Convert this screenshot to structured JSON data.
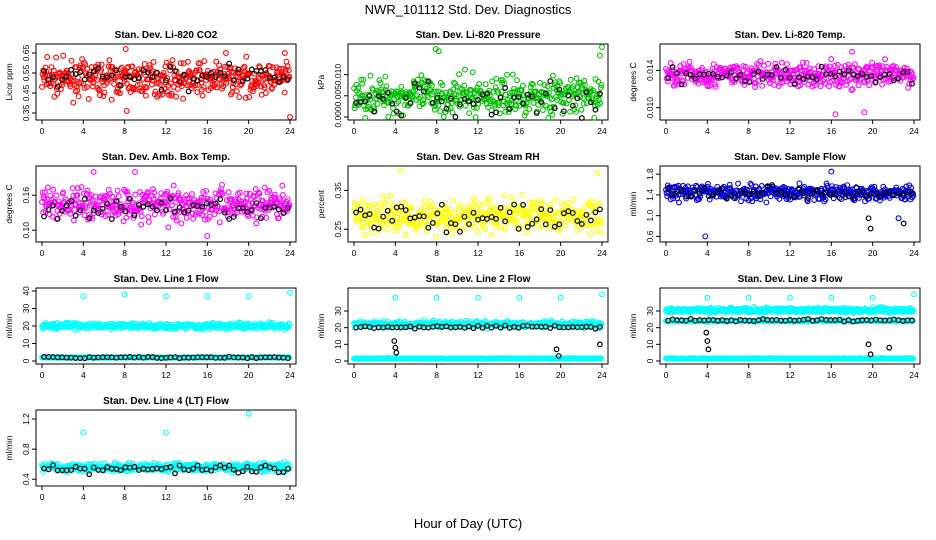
{
  "title": "NWR_101112  Std. Dev. Diagnostics",
  "xlabel": "Hour of Day (UTC)",
  "chart_data": [
    {
      "type": "scatter",
      "title": "Stan. Dev. Li-820 CO2",
      "ylabel": "Licor ppm",
      "xlim": [
        0,
        24
      ],
      "ylim": [
        0.33,
        0.68
      ],
      "xticks": [
        0,
        4,
        8,
        12,
        16,
        20,
        24
      ],
      "yticks": [
        0.35,
        0.45,
        0.55,
        0.65
      ],
      "ytick_labels": [
        "0.35",
        "0.45",
        "0.55",
        "0.65"
      ],
      "color": "#ff0000",
      "center": 0.52,
      "spread": 0.055,
      "black_center": 0.53,
      "black_spread": 0.04,
      "outliers": [
        [
          0.5,
          0.63
        ],
        [
          8.2,
          0.36
        ],
        [
          8.1,
          0.67
        ],
        [
          17.8,
          0.65
        ],
        [
          23.5,
          0.65
        ],
        [
          24,
          0.33
        ]
      ],
      "dips": []
    },
    {
      "type": "scatter",
      "title": "Stan. Dev. Li-820 Pressure",
      "ylabel": "kPa",
      "xlim": [
        0,
        24
      ],
      "ylim": [
        0,
        0.0165
      ],
      "xticks": [
        0,
        4,
        8,
        12,
        16,
        20,
        24
      ],
      "yticks": [
        0,
        0.005,
        0.01
      ],
      "ytick_labels": [
        "0.000",
        "0.005",
        "0.010"
      ],
      "color": "#00c000",
      "center": 0.005,
      "spread": 0.003,
      "black_center": 0.004,
      "black_spread": 0.003,
      "outliers": [
        [
          7.9,
          0.016
        ],
        [
          8.2,
          0.0155
        ],
        [
          24,
          0.0165
        ],
        [
          23.8,
          0.0145
        ]
      ],
      "dips": []
    },
    {
      "type": "scatter",
      "title": "Stan. Dev. Li-820 Temp.",
      "ylabel": "degrees C",
      "xlim": [
        0,
        24
      ],
      "ylim": [
        0.009,
        0.0165
      ],
      "xticks": [
        0,
        4,
        8,
        12,
        16,
        20,
        24
      ],
      "yticks": [
        0.01,
        0.014
      ],
      "ytick_labels": [
        "0.010",
        "0.014"
      ],
      "color": "#ff00ff",
      "center": 0.0135,
      "spread": 0.0009,
      "black_center": 0.0135,
      "black_spread": 0.0006,
      "outliers": [
        [
          16.4,
          0.0093
        ],
        [
          18,
          0.016
        ],
        [
          19.2,
          0.0095
        ]
      ],
      "dips": []
    },
    {
      "type": "scatter",
      "title": "Stan. Dev. Amb. Box Temp.",
      "ylabel": "degrees C",
      "xlim": [
        0,
        24
      ],
      "ylim": [
        0.085,
        0.205
      ],
      "xticks": [
        0,
        4,
        8,
        12,
        16,
        20,
        24
      ],
      "yticks": [
        0.1,
        0.16
      ],
      "ytick_labels": [
        "0.10",
        "0.16"
      ],
      "color": "#ff00ff",
      "center": 0.145,
      "spread": 0.02,
      "black_center": 0.135,
      "black_spread": 0.012,
      "outliers": [
        [
          5,
          0.2
        ],
        [
          9,
          0.2
        ],
        [
          16,
          0.09
        ]
      ],
      "dips": []
    },
    {
      "type": "scatter",
      "title": "Stan. Dev. Gas Stream RH",
      "ylabel": "percent",
      "xlim": [
        0,
        24
      ],
      "ylim": [
        0.225,
        0.405
      ],
      "xticks": [
        0,
        4,
        8,
        12,
        16,
        20,
        24
      ],
      "yticks": [
        0.25,
        0.35
      ],
      "ytick_labels": [
        "0.25",
        "0.35"
      ],
      "color": "#ffff00",
      "center": 0.285,
      "spread": 0.03,
      "black_center": 0.28,
      "black_spread": 0.025,
      "outliers": [
        [
          4.5,
          0.4
        ],
        [
          23.6,
          0.395
        ]
      ],
      "dips": []
    },
    {
      "type": "scatter",
      "title": "Stan. Dev. Sample Flow",
      "ylabel": "ml/min",
      "xlim": [
        0,
        24
      ],
      "ylim": [
        0.55,
        1.9
      ],
      "xticks": [
        0,
        4,
        8,
        12,
        16,
        20,
        24
      ],
      "yticks": [
        0.6,
        1.0,
        1.4,
        1.8
      ],
      "ytick_labels": [
        "0.6",
        "1.0",
        "1.4",
        "1.8"
      ],
      "color": "#0000e0",
      "center": 1.45,
      "spread": 0.1,
      "black_center": 1.45,
      "black_spread": 0.08,
      "outliers": [
        [
          3.8,
          0.6
        ],
        [
          16,
          1.85
        ],
        [
          22.5,
          0.95
        ]
      ],
      "dips": [
        [
          19.8,
          0.75
        ],
        [
          19.6,
          0.95
        ],
        [
          23,
          0.85
        ]
      ]
    },
    {
      "type": "scatter",
      "title": "Stan. Dev. Line 1 Flow",
      "ylabel": "ml/min",
      "xlim": [
        0,
        24
      ],
      "ylim": [
        0,
        40
      ],
      "xticks": [
        0,
        4,
        8,
        12,
        16,
        20,
        24
      ],
      "yticks": [
        0,
        10,
        20,
        30,
        40
      ],
      "ytick_labels": [
        "0",
        "10",
        "20",
        "30",
        "40"
      ],
      "color": "#00ffff",
      "center": 20,
      "spread": 1.2,
      "black_center": 2,
      "black_spread": 0.3,
      "band2": 2,
      "outliers": [
        [
          4,
          37
        ],
        [
          8,
          38
        ],
        [
          12,
          37
        ],
        [
          16,
          37
        ],
        [
          20,
          37
        ],
        [
          24,
          39
        ]
      ],
      "dips": []
    },
    {
      "type": "scatter",
      "title": "Stan. Dev. Line 2 Flow",
      "ylabel": "ml/min",
      "xlim": [
        0,
        24
      ],
      "ylim": [
        0,
        42
      ],
      "xticks": [
        0,
        4,
        8,
        12,
        16,
        20,
        24
      ],
      "yticks": [
        0,
        10,
        20,
        30
      ],
      "ytick_labels": [
        "0",
        "10",
        "20",
        "30"
      ],
      "color": "#00ffff",
      "center": 22,
      "spread": 1.2,
      "black_center": 20.5,
      "black_spread": 0.6,
      "band2": 1.5,
      "outliers": [
        [
          4,
          38
        ],
        [
          8,
          38
        ],
        [
          12,
          38
        ],
        [
          16,
          38
        ],
        [
          20,
          38
        ],
        [
          24,
          40
        ]
      ],
      "dips": [
        [
          3.9,
          12
        ],
        [
          4,
          8
        ],
        [
          4.1,
          5
        ],
        [
          19.6,
          7
        ],
        [
          19.8,
          3
        ],
        [
          23.8,
          10
        ]
      ]
    },
    {
      "type": "scatter",
      "title": "Stan. Dev. Line 3 Flow",
      "ylabel": "ml/min",
      "xlim": [
        0,
        24
      ],
      "ylim": [
        0,
        42
      ],
      "xticks": [
        0,
        4,
        8,
        12,
        16,
        20,
        24
      ],
      "yticks": [
        0,
        10,
        20,
        30
      ],
      "ytick_labels": [
        "0",
        "10",
        "20",
        "30"
      ],
      "color": "#00ffff",
      "center": 30.5,
      "spread": 1,
      "black_center": 24.5,
      "black_spread": 0.5,
      "band2": 1.5,
      "band3": 24,
      "outliers": [
        [
          4,
          38
        ],
        [
          8,
          38
        ],
        [
          12,
          38
        ],
        [
          16,
          38
        ],
        [
          20,
          38
        ],
        [
          24,
          40
        ]
      ],
      "dips": [
        [
          3.9,
          17
        ],
        [
          4,
          12
        ],
        [
          4.1,
          7
        ],
        [
          19.6,
          10
        ],
        [
          19.8,
          4
        ],
        [
          21.6,
          8
        ]
      ]
    },
    {
      "type": "scatter",
      "title": "Stan. Dev. Line 4 (LT) Flow",
      "ylabel": "ml/min",
      "xlim": [
        0,
        24
      ],
      "ylim": [
        0.35,
        1.28
      ],
      "xticks": [
        0,
        4,
        8,
        12,
        16,
        20,
        24
      ],
      "yticks": [
        0.4,
        0.8,
        1.2
      ],
      "ytick_labels": [
        "0.4",
        "0.8",
        "1.2"
      ],
      "color": "#00ffff",
      "center": 0.56,
      "spread": 0.04,
      "black_center": 0.53,
      "black_spread": 0.04,
      "outliers": [
        [
          4,
          1.02
        ],
        [
          12,
          1.02
        ],
        [
          20,
          1.27
        ]
      ],
      "dips": []
    }
  ]
}
